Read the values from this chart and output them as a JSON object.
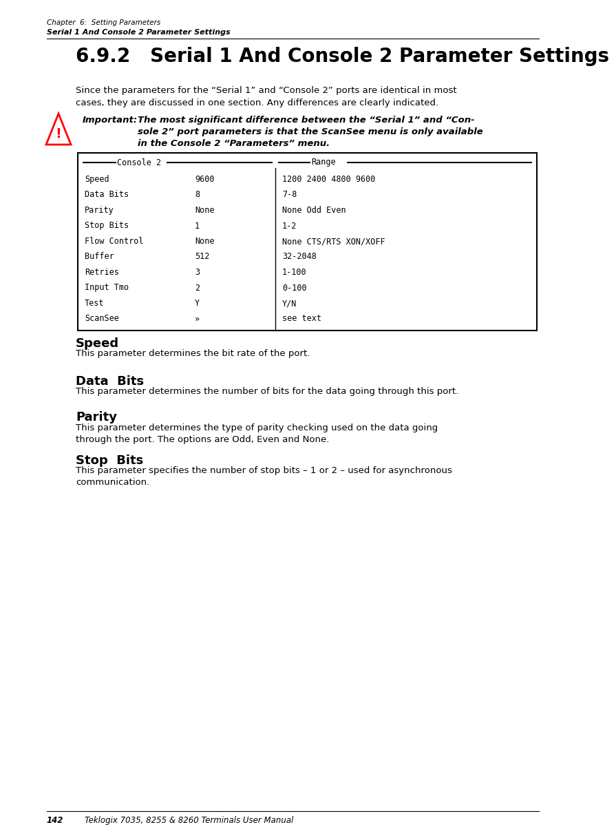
{
  "bg_color": "#ffffff",
  "header_line1": "Chapter  6:  Setting Parameters",
  "header_line2": "Serial 1 And Console 2 Parameter Settings",
  "section_title": "6.9.2   Serial 1 And Console 2 Parameter Settings",
  "intro_line1": "Since the parameters for the “Serial 1” and “Console 2” ports are identical in most",
  "intro_line2": "cases, they are discussed in one section. Any differences are clearly indicated.",
  "important_label": "Important:",
  "important_text_line1": "The most significant difference between the “Serial 1” and “Con-",
  "important_text_line2": "sole 2” port parameters is that the ScanSee menu is only available",
  "important_text_line3": "in the Console 2 “Parameters” menu.",
  "table_header_left": "Console 2",
  "table_header_right": "Range",
  "table_rows": [
    [
      "Speed",
      "9600",
      "1200 2400 4800 9600"
    ],
    [
      "Data Bits",
      "8",
      "7-8"
    ],
    [
      "Parity",
      "None",
      "None Odd Even"
    ],
    [
      "Stop Bits",
      "1",
      "1-2"
    ],
    [
      "Flow Control",
      "None",
      "None CTS/RTS XON/XOFF"
    ],
    [
      "Buffer",
      "512",
      "32-2048"
    ],
    [
      "Retries",
      "3",
      "1-100"
    ],
    [
      "Input Tmo",
      "2",
      "0-100"
    ],
    [
      "Test",
      "Y",
      "Y/N"
    ],
    [
      "ScanSee",
      "»",
      "see text"
    ]
  ],
  "sections": [
    {
      "heading": "Speed",
      "body": "This parameter determines the bit rate of the port.",
      "body2": ""
    },
    {
      "heading": "Data  Bits",
      "body": "This parameter determines the number of bits for the data going through this port.",
      "body2": ""
    },
    {
      "heading": "Parity",
      "body": "This parameter determines the type of parity checking used on the data going",
      "body2": "through the port. The options are Odd, Even and None."
    },
    {
      "heading": "Stop  Bits",
      "body": "This parameter specifies the number of stop bits – 1 or 2 – used for asynchronous",
      "body2": "communication."
    }
  ],
  "footer_page": "142",
  "footer_text": "Teklogix 7035, 8255 & 8260 Terminals User Manual"
}
